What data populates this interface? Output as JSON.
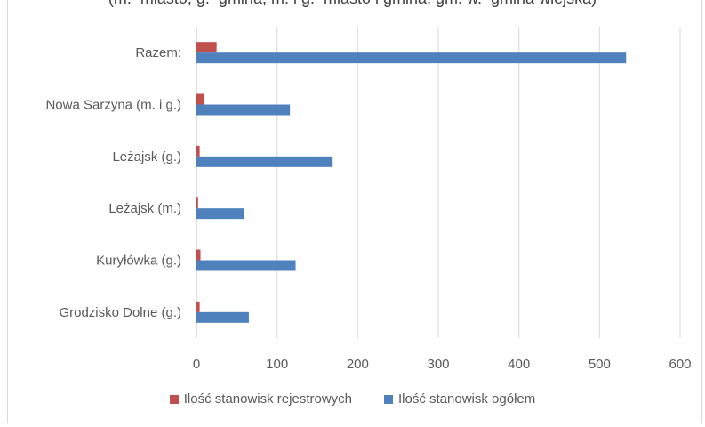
{
  "chart_data": {
    "type": "bar",
    "orientation": "horizontal",
    "title": "(m.–miasto, g.–gmina, m. i g.–miasto i gmina, gm. w.–gmina wiejska)",
    "categories": [
      "Razem:",
      "Nowa Sarzyna (m. i g.)",
      "Leżajsk (g.)",
      "Leżajsk (m.)",
      "Kuryłówka (g.)",
      "Grodzisko Dolne (g.)"
    ],
    "series": [
      {
        "name": "Ilość stanowisk rejestrowych",
        "color": "#c0504d",
        "values": [
          25,
          10,
          4,
          2,
          5,
          4
        ]
      },
      {
        "name": "Ilość stanowisk ogółem",
        "color": "#4f81bd",
        "values": [
          533,
          116,
          169,
          59,
          123,
          65
        ]
      }
    ],
    "xticks": [
      "0",
      "100",
      "200",
      "300",
      "400",
      "500",
      "600"
    ],
    "xlim": [
      0,
      600
    ],
    "grid": true,
    "legend_position": "bottom"
  }
}
